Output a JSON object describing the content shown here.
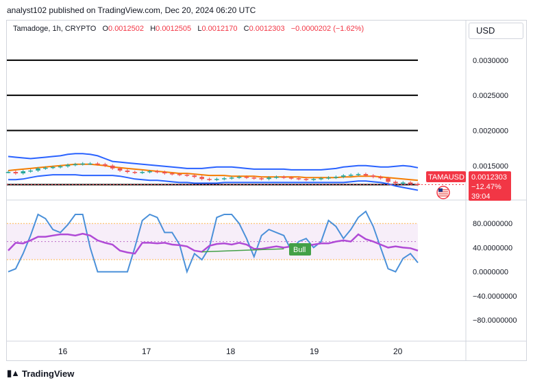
{
  "header": {
    "published": "analyst102 published on TradingView.com, Dec 20, 2024 06:20 UTC"
  },
  "ohlc": {
    "symbol": "Tamadoge, 1h, CRYPTO",
    "o_label": "O",
    "o": "0.0012502",
    "h_label": "H",
    "h": "0.0012505",
    "l_label": "L",
    "l": "0.0012170",
    "c_label": "C",
    "c": "0.0012303",
    "change": "−0.0000202 (−1.62%)"
  },
  "currency_button": "USD",
  "price_tag": {
    "symbol": "TAMAUSD",
    "price": "0.0012303",
    "change_pct": "−12.47%",
    "countdown": "39:04",
    "color": "#f23645"
  },
  "bull_label": "Bull",
  "footer": {
    "brand": "TradingView"
  },
  "colors": {
    "up_candle": "#26a69a",
    "down_candle": "#ef5350",
    "bollinger": "#2962ff",
    "ema": "#f57c00",
    "stoch_k": "#4a90d9",
    "rsi": "#b04ad6",
    "bull": "#43a047"
  },
  "chart_data": [
    {
      "type": "candlestick",
      "title": "Tamadoge, 1h, CRYPTO",
      "x_ticks": [
        "16",
        "17",
        "18",
        "19",
        "20"
      ],
      "y_ticks": [
        "0.0030000",
        "0.0025000",
        "0.0020000",
        "0.0015000"
      ],
      "ylim": [
        0.00103,
        0.00332
      ],
      "horizontal_levels": [
        0.003,
        0.0025,
        0.002,
        0.00123
      ],
      "close_series": [
        0.00141,
        0.00139,
        0.00142,
        0.00143,
        0.00146,
        0.00147,
        0.00148,
        0.00149,
        0.00151,
        0.00152,
        0.00153,
        0.00153,
        0.00152,
        0.0015,
        0.00146,
        0.00143,
        0.00141,
        0.0014,
        0.00141,
        0.00142,
        0.00141,
        0.00139,
        0.00138,
        0.00137,
        0.00136,
        0.00134,
        0.00131,
        0.0013,
        0.00131,
        0.00132,
        0.00133,
        0.00134,
        0.00133,
        0.00132,
        0.00131,
        0.00133,
        0.00134,
        0.00133,
        0.00132,
        0.00131,
        0.0013,
        0.00131,
        0.00132,
        0.00133,
        0.00134,
        0.00136,
        0.00137,
        0.00138,
        0.00136,
        0.00134,
        0.00132,
        0.00127,
        0.00125,
        0.00126,
        0.00124,
        0.00123
      ],
      "bollinger_upper": [
        0.00163,
        0.00162,
        0.00161,
        0.0016,
        0.00161,
        0.00162,
        0.00163,
        0.00164,
        0.00166,
        0.00167,
        0.00167,
        0.00166,
        0.00164,
        0.0016,
        0.00156,
        0.00155,
        0.00154,
        0.00153,
        0.00152,
        0.00151,
        0.0015,
        0.00149,
        0.00148,
        0.00147,
        0.00146,
        0.00146,
        0.00146,
        0.00147,
        0.00148,
        0.00148,
        0.00148,
        0.00147,
        0.00146,
        0.00145,
        0.00145,
        0.00145,
        0.00145,
        0.00145,
        0.00144,
        0.00144,
        0.00144,
        0.00144,
        0.00144,
        0.00145,
        0.00146,
        0.00148,
        0.00149,
        0.0015,
        0.0015,
        0.00149,
        0.00148,
        0.00148,
        0.00149,
        0.0015,
        0.00149,
        0.00147
      ],
      "bollinger_lower": [
        0.0013,
        0.0013,
        0.00131,
        0.00133,
        0.00135,
        0.00136,
        0.00137,
        0.00137,
        0.00137,
        0.00137,
        0.00136,
        0.00136,
        0.00136,
        0.00136,
        0.00136,
        0.00135,
        0.00133,
        0.00131,
        0.0013,
        0.00129,
        0.00129,
        0.00128,
        0.00127,
        0.00126,
        0.00126,
        0.00125,
        0.00125,
        0.00125,
        0.00125,
        0.00126,
        0.00126,
        0.00126,
        0.00126,
        0.00126,
        0.00126,
        0.00126,
        0.00126,
        0.00126,
        0.00126,
        0.00126,
        0.00126,
        0.00126,
        0.00126,
        0.00126,
        0.00126,
        0.00126,
        0.00127,
        0.00128,
        0.00128,
        0.00127,
        0.00126,
        0.00124,
        0.00121,
        0.00119,
        0.00117,
        0.00115
      ],
      "ema_series": [
        0.00143,
        0.00144,
        0.00145,
        0.00146,
        0.00147,
        0.00148,
        0.00149,
        0.0015,
        0.00151,
        0.00152,
        0.00152,
        0.00152,
        0.00151,
        0.0015,
        0.00148,
        0.00147,
        0.00146,
        0.00145,
        0.00144,
        0.00143,
        0.00142,
        0.00141,
        0.0014,
        0.00139,
        0.00139,
        0.00138,
        0.00137,
        0.00136,
        0.00136,
        0.00136,
        0.00135,
        0.00135,
        0.00135,
        0.00135,
        0.00134,
        0.00134,
        0.00134,
        0.00134,
        0.00134,
        0.00134,
        0.00133,
        0.00133,
        0.00133,
        0.00133,
        0.00133,
        0.00134,
        0.00134,
        0.00135,
        0.00135,
        0.00135,
        0.00134,
        0.00133,
        0.00132,
        0.00131,
        0.0013,
        0.00129
      ]
    },
    {
      "type": "line",
      "title": "Stochastic RSI",
      "y_ticks": [
        "80.0000000",
        "40.0000000",
        "0.0000000",
        "−40.0000000",
        "−80.0000000"
      ],
      "ylim": [
        -115,
        112
      ],
      "bands": [
        80,
        20
      ],
      "k_series": [
        0,
        5,
        30,
        60,
        95,
        88,
        70,
        65,
        78,
        95,
        95,
        40,
        0,
        0,
        0,
        0,
        0,
        40,
        85,
        95,
        90,
        65,
        65,
        45,
        0,
        30,
        20,
        40,
        90,
        95,
        95,
        80,
        55,
        25,
        60,
        70,
        65,
        60,
        35,
        50,
        55,
        40,
        50,
        85,
        75,
        55,
        70,
        90,
        100,
        75,
        40,
        5,
        0,
        22,
        30,
        15
      ],
      "rsi_series": [
        35,
        48,
        47,
        52,
        58,
        58,
        60,
        62,
        62,
        60,
        63,
        60,
        52,
        48,
        45,
        35,
        32,
        30,
        48,
        48,
        47,
        48,
        45,
        44,
        42,
        35,
        33,
        43,
        46,
        47,
        45,
        48,
        45,
        38,
        38,
        40,
        42,
        40,
        42,
        42,
        43,
        45,
        47,
        47,
        50,
        52,
        50,
        62,
        54,
        50,
        45,
        40,
        42,
        40,
        39,
        35
      ]
    }
  ]
}
